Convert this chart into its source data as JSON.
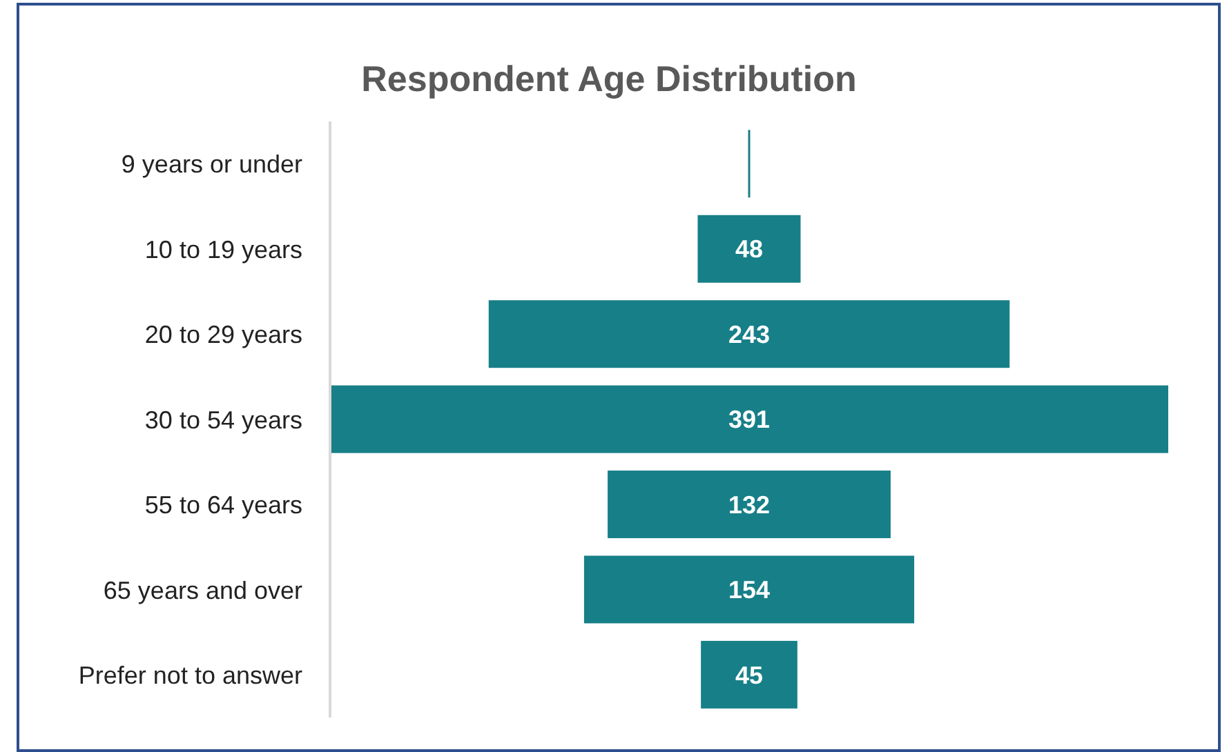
{
  "chart_data": {
    "type": "other",
    "title": "Respondent Age Distribution",
    "categories": [
      "9 years or under",
      "10 to 19 years",
      "20 to 29 years",
      "30 to 54 years",
      "55 to 64 years",
      "65 years and over",
      "Prefer not to answer"
    ],
    "values": [
      null,
      48,
      243,
      391,
      132,
      154,
      45
    ],
    "value_labels": [
      null,
      "48",
      "243",
      "391",
      "132",
      "154",
      "45"
    ],
    "color": "#177f88"
  }
}
